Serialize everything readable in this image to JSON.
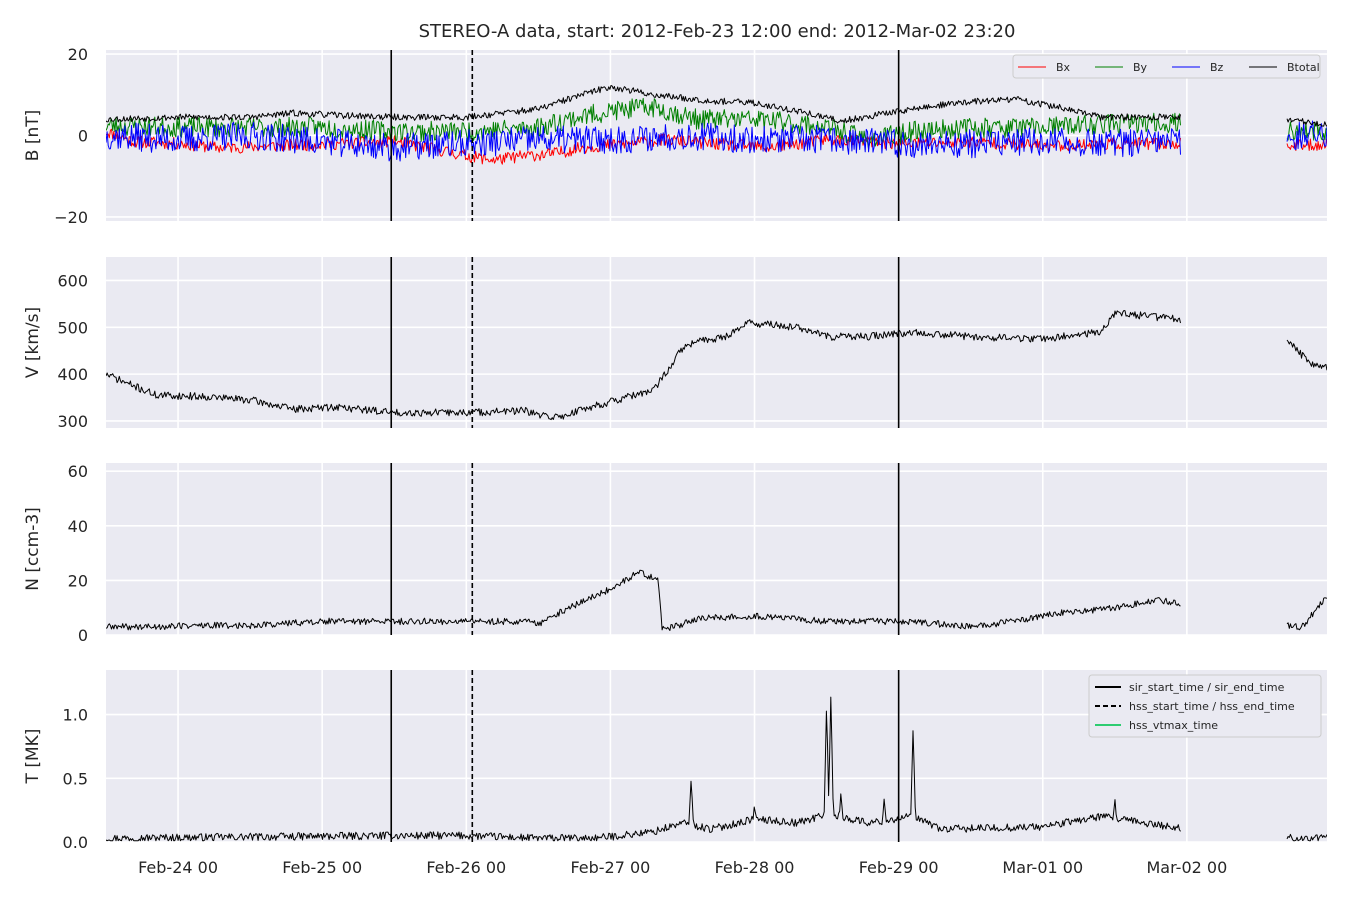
{
  "chart_data": {
    "type": "line",
    "title": "STEREO-A data, start: 2012-Feb-23 12:00  end: 2012-Mar-02 23:20",
    "x_range": [
      "2012-02-23 12:00",
      "2012-03-02 23:20"
    ],
    "x_ticks": [
      {
        "date": "2012-02-24 00:00",
        "label": "Feb-24 00"
      },
      {
        "date": "2012-02-25 00:00",
        "label": "Feb-25 00"
      },
      {
        "date": "2012-02-26 00:00",
        "label": "Feb-26 00"
      },
      {
        "date": "2012-02-27 00:00",
        "label": "Feb-27 00"
      },
      {
        "date": "2012-02-28 00:00",
        "label": "Feb-28 00"
      },
      {
        "date": "2012-02-29 00:00",
        "label": "Feb-29 00"
      },
      {
        "date": "2012-03-01 00:00",
        "label": "Mar-01 00"
      },
      {
        "date": "2012-03-02 00:00",
        "label": "Mar-02 00"
      }
    ],
    "data_gap": [
      "2012-03-01 23:00",
      "2012-03-02 16:40"
    ],
    "event_lines": [
      {
        "date": "2012-02-25 11:30",
        "style": "solid"
      },
      {
        "date": "2012-02-26 01:00",
        "style": "dashed"
      },
      {
        "date": "2012-02-29 00:00",
        "style": "solid"
      }
    ],
    "grid": true,
    "panels": [
      {
        "ylabel": "B [nT]",
        "ylim": [
          -21,
          21
        ],
        "yticks": [
          {
            "v": 20,
            "label": "20"
          },
          {
            "v": 0,
            "label": "0"
          },
          {
            "v": -20,
            "label": "−20"
          }
        ],
        "legend": {
          "position": "top-right",
          "columns": 4
        },
        "series": [
          {
            "name": "Bx",
            "color": "#ff0000",
            "knots": [
              [
                0,
                1
              ],
              [
                0.2,
                -1.5
              ],
              [
                0.5,
                -2
              ],
              [
                0.8,
                -3
              ],
              [
                1.2,
                -2.5
              ],
              [
                1.6,
                -2
              ],
              [
                2.0,
                -1.5
              ],
              [
                2.3,
                -3.5
              ],
              [
                2.5,
                -5
              ],
              [
                2.7,
                -6
              ],
              [
                2.9,
                -5
              ],
              [
                3.1,
                -4.5
              ],
              [
                3.3,
                -3
              ],
              [
                3.6,
                -2
              ],
              [
                3.9,
                -1
              ],
              [
                4.2,
                -2
              ],
              [
                4.6,
                -3
              ],
              [
                4.8,
                -2
              ],
              [
                5.0,
                -1
              ],
              [
                5.3,
                -1.5
              ],
              [
                5.5,
                -2
              ],
              [
                6.0,
                -1.5
              ],
              [
                6.5,
                -2.5
              ],
              [
                7.0,
                -2
              ],
              [
                7.4,
                -2
              ],
              [
                7.8,
                -2.5
              ],
              [
                8.3,
                -2.5
              ],
              [
                8.5,
                -2
              ]
            ],
            "amp": 1.5,
            "seed": 11
          },
          {
            "name": "By",
            "color": "#008000",
            "knots": [
              [
                0,
                2.5
              ],
              [
                0.5,
                2
              ],
              [
                1.0,
                2
              ],
              [
                1.5,
                2
              ],
              [
                2.0,
                1
              ],
              [
                2.5,
                1
              ],
              [
                3.0,
                2
              ],
              [
                3.2,
                4
              ],
              [
                3.5,
                6
              ],
              [
                3.8,
                7
              ],
              [
                4.1,
                4
              ],
              [
                4.5,
                4
              ],
              [
                4.8,
                3
              ],
              [
                5.0,
                2
              ],
              [
                5.3,
                -1
              ],
              [
                5.6,
                1
              ],
              [
                6.0,
                2
              ],
              [
                6.5,
                2
              ],
              [
                7.0,
                3
              ],
              [
                7.5,
                3
              ],
              [
                8.0,
                2
              ],
              [
                8.3,
                1
              ],
              [
                8.5,
                1
              ]
            ],
            "amp": 2.5,
            "seed": 23
          },
          {
            "name": "Bz",
            "color": "#0000ff",
            "knots": [
              [
                0,
                0
              ],
              [
                0.5,
                -1
              ],
              [
                1.0,
                0
              ],
              [
                1.5,
                -1.5
              ],
              [
                2.0,
                -3
              ],
              [
                2.5,
                -2
              ],
              [
                3.0,
                -1
              ],
              [
                3.3,
                -1
              ],
              [
                3.6,
                -1
              ],
              [
                4.0,
                0
              ],
              [
                4.5,
                -1
              ],
              [
                5.0,
                -1
              ],
              [
                5.5,
                -2
              ],
              [
                6.0,
                -2
              ],
              [
                6.5,
                -1.5
              ],
              [
                7.0,
                -2
              ],
              [
                7.5,
                -1.5
              ],
              [
                8.0,
                -2
              ],
              [
                8.3,
                0
              ],
              [
                8.5,
                1
              ]
            ],
            "amp": 3.5,
            "seed": 37
          },
          {
            "name": "Btotal",
            "color": "#000000",
            "knots": [
              [
                0,
                4
              ],
              [
                0.5,
                4.5
              ],
              [
                1.0,
                4.5
              ],
              [
                1.3,
                5.5
              ],
              [
                1.6,
                5
              ],
              [
                2.0,
                4.5
              ],
              [
                2.5,
                4.5
              ],
              [
                3.0,
                6.5
              ],
              [
                3.3,
                10
              ],
              [
                3.5,
                12
              ],
              [
                3.8,
                10
              ],
              [
                4.2,
                8.5
              ],
              [
                4.5,
                8
              ],
              [
                4.8,
                6
              ],
              [
                5.1,
                3.5
              ],
              [
                5.5,
                6
              ],
              [
                5.9,
                8
              ],
              [
                6.3,
                9
              ],
              [
                6.6,
                7
              ],
              [
                6.9,
                4.5
              ],
              [
                7.5,
                4.5
              ],
              [
                8.0,
                3.5
              ],
              [
                8.2,
                4
              ],
              [
                8.5,
                2.5
              ]
            ],
            "amp": 0.8,
            "seed": 53
          }
        ]
      },
      {
        "ylabel": "V [km/s]",
        "ylim": [
          285,
          650
        ],
        "yticks": [
          {
            "v": 600,
            "label": "600"
          },
          {
            "v": 500,
            "label": "500"
          },
          {
            "v": 400,
            "label": "400"
          },
          {
            "v": 300,
            "label": "300"
          }
        ],
        "series": [
          {
            "name": "",
            "color": "#000000",
            "knots": [
              [
                0,
                400
              ],
              [
                0.15,
                380
              ],
              [
                0.35,
                355
              ],
              [
                0.7,
                352
              ],
              [
                1.0,
                345
              ],
              [
                1.3,
                325
              ],
              [
                1.6,
                330
              ],
              [
                2.0,
                318
              ],
              [
                2.5,
                318
              ],
              [
                2.9,
                322
              ],
              [
                3.0,
                312
              ],
              [
                3.15,
                308
              ],
              [
                3.3,
                325
              ],
              [
                3.55,
                345
              ],
              [
                3.8,
                365
              ],
              [
                3.9,
                410
              ],
              [
                4.0,
                455
              ],
              [
                4.1,
                470
              ],
              [
                4.3,
                480
              ],
              [
                4.45,
                510
              ],
              [
                4.8,
                500
              ],
              [
                5.0,
                480
              ],
              [
                5.3,
                480
              ],
              [
                5.6,
                490
              ],
              [
                6.0,
                480
              ],
              [
                6.5,
                475
              ],
              [
                6.9,
                490
              ],
              [
                7.0,
                530
              ],
              [
                7.2,
                525
              ],
              [
                7.5,
                515
              ],
              [
                7.8,
                470
              ],
              [
                8.05,
                460
              ],
              [
                8.2,
                470
              ],
              [
                8.35,
                425
              ],
              [
                8.55,
                405
              ],
              [
                8.5,
                385
              ]
            ],
            "amp": 8,
            "seed": 71
          }
        ]
      },
      {
        "ylabel": "N [ccm-3]",
        "ylim": [
          0,
          63
        ],
        "yticks": [
          {
            "v": 60,
            "label": "60"
          },
          {
            "v": 40,
            "label": "40"
          },
          {
            "v": 20,
            "label": "20"
          },
          {
            "v": 0,
            "label": "0"
          }
        ],
        "series": [
          {
            "name": "",
            "color": "#000000",
            "knots": [
              [
                0,
                3
              ],
              [
                0.3,
                3
              ],
              [
                0.6,
                3.5
              ],
              [
                1.0,
                3.5
              ],
              [
                1.5,
                5
              ],
              [
                2.0,
                5
              ],
              [
                2.5,
                5
              ],
              [
                2.9,
                5
              ],
              [
                3.0,
                4
              ],
              [
                3.1,
                7
              ],
              [
                3.3,
                12
              ],
              [
                3.5,
                17
              ],
              [
                3.7,
                23
              ],
              [
                3.83,
                20
              ],
              [
                3.86,
                2
              ],
              [
                3.95,
                3
              ],
              [
                4.1,
                6
              ],
              [
                4.5,
                7
              ],
              [
                5.0,
                5
              ],
              [
                5.5,
                5
              ],
              [
                5.8,
                4
              ],
              [
                6.0,
                3
              ],
              [
                6.3,
                5
              ],
              [
                6.6,
                8
              ],
              [
                7.0,
                10
              ],
              [
                7.3,
                13
              ],
              [
                7.5,
                11
              ],
              [
                7.7,
                10
              ],
              [
                7.9,
                7
              ],
              [
                8.0,
                4
              ],
              [
                8.3,
                3
              ],
              [
                8.5,
                16
              ]
            ],
            "amp": 1.2,
            "seed": 89
          }
        ]
      },
      {
        "ylabel": "T [MK]",
        "ylim": [
          0,
          1.35
        ],
        "yticks": [
          {
            "v": 1.0,
            "label": "1.0"
          },
          {
            "v": 0.5,
            "label": "0.5"
          },
          {
            "v": 0.0,
            "label": "0.0"
          }
        ],
        "legend": {
          "position": "top-right",
          "entries": [
            {
              "label": "sir_start_time / sir_end_time",
              "color": "#000000",
              "style": "solid"
            },
            {
              "label": "hss_start_time / hss_end_time",
              "color": "#000000",
              "style": "dashed"
            },
            {
              "label": "hss_vtmax_time",
              "color": "#2ecc71",
              "style": "solid"
            }
          ]
        },
        "series": [
          {
            "name": "",
            "color": "#000000",
            "knots": [
              [
                0,
                0.03
              ],
              [
                1.0,
                0.04
              ],
              [
                2.0,
                0.05
              ],
              [
                2.5,
                0.05
              ],
              [
                3.0,
                0.03
              ],
              [
                3.4,
                0.03
              ],
              [
                3.8,
                0.08
              ],
              [
                4.0,
                0.15
              ],
              [
                4.2,
                0.1
              ],
              [
                4.5,
                0.18
              ],
              [
                4.8,
                0.15
              ],
              [
                5.0,
                0.22
              ],
              [
                5.3,
                0.15
              ],
              [
                5.6,
                0.2
              ],
              [
                5.8,
                0.1
              ],
              [
                6.5,
                0.12
              ],
              [
                6.9,
                0.2
              ],
              [
                7.2,
                0.15
              ],
              [
                7.5,
                0.1
              ],
              [
                7.8,
                0.08
              ],
              [
                8.0,
                0.05
              ],
              [
                8.2,
                0.03
              ],
              [
                8.5,
                0.03
              ]
            ],
            "amp": 0.03,
            "seed": 97,
            "spikes": [
              [
                4.06,
                0.45
              ],
              [
                4.5,
                0.25
              ],
              [
                5.0,
                1.05
              ],
              [
                5.03,
                1.12
              ],
              [
                5.1,
                0.35
              ],
              [
                5.6,
                0.85
              ],
              [
                5.4,
                0.3
              ],
              [
                7.0,
                0.3
              ],
              [
                7.5,
                0.12
              ]
            ]
          }
        ]
      }
    ]
  }
}
